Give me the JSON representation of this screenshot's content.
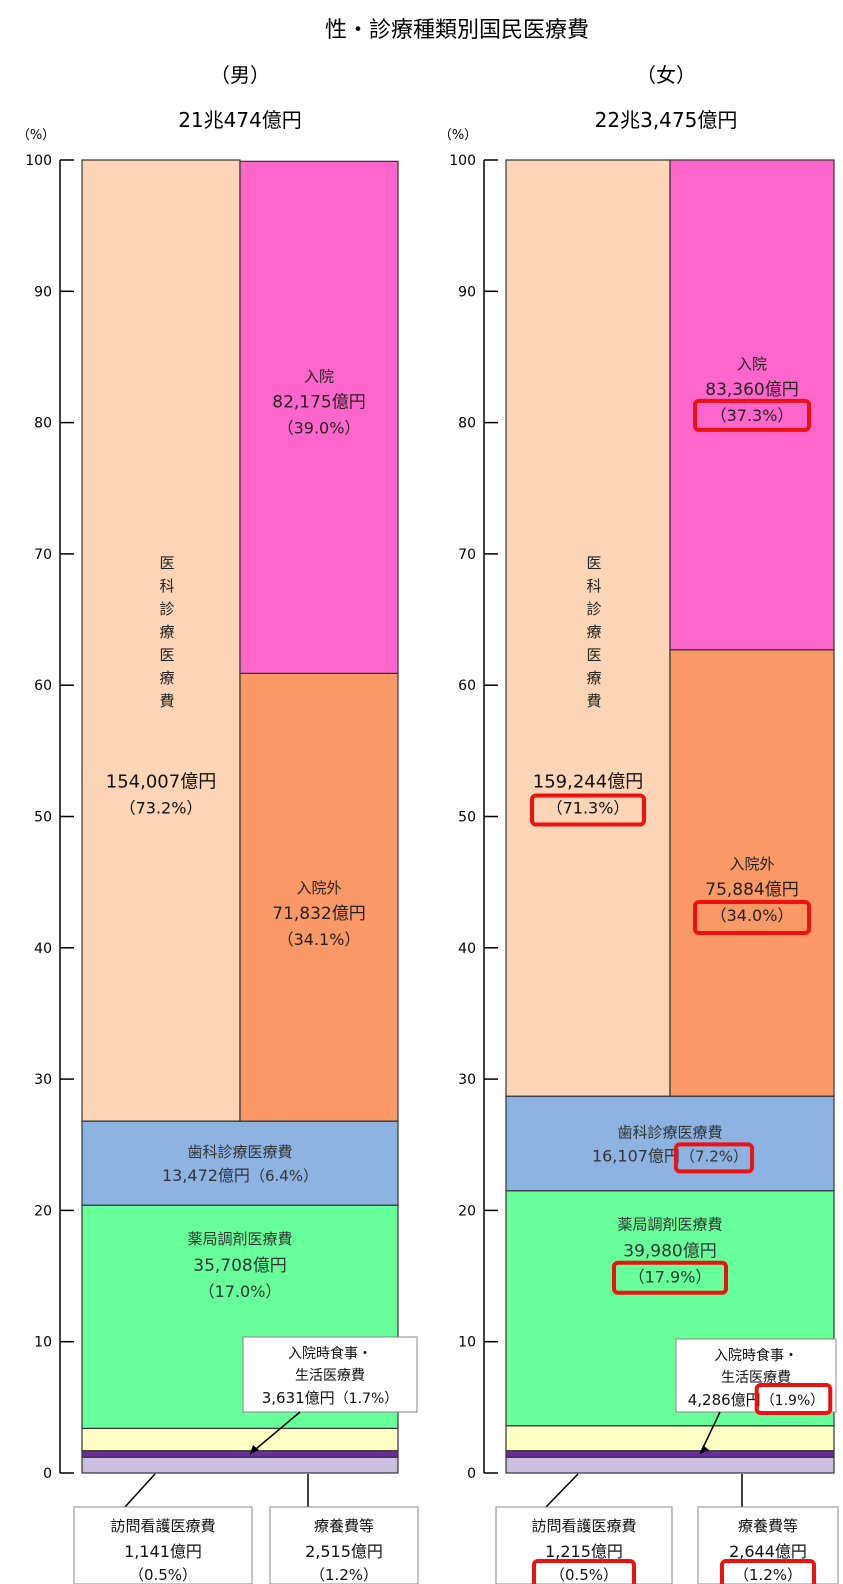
{
  "chart_data": {
    "type": "bar",
    "title": "性・診療種類別国民医療費",
    "ylim": [
      0,
      100
    ],
    "yticks": [
      "0",
      "10",
      "20",
      "30",
      "40",
      "50",
      "60",
      "70",
      "80",
      "90",
      "100"
    ],
    "yunit": "（%）",
    "highlight_color": "#ee1111",
    "panels": [
      {
        "sex": "（男）",
        "total": "21兆474億円",
        "segments": [
          {
            "key": "ryoyo",
            "share": 1.2,
            "color": "#cbbfdf"
          },
          {
            "key": "homon",
            "share": 0.5,
            "color": "#6a2d9b"
          },
          {
            "key": "shokuji",
            "share": 1.7,
            "color": "#ffffc4"
          },
          {
            "key": "yakkyoku",
            "share": 17.0,
            "color": "#66ff99"
          },
          {
            "key": "shika",
            "share": 6.4,
            "color": "#8db3e2"
          },
          {
            "key": "ika",
            "share": 73.2,
            "color": "#fbd5b5",
            "split": [
              {
                "key": "gairai",
                "share": 34.1,
                "color": "#fb9966"
              },
              {
                "key": "nyuin",
                "share": 39.0,
                "color": "#ff66cc"
              }
            ]
          }
        ],
        "labels": {
          "nyuin": [
            "入院",
            "82,175億円",
            "（39.0%）"
          ],
          "gairai": [
            "入院外",
            "71,832億円",
            "（34.1%）"
          ],
          "ika": [
            "154,007億円",
            "（73.2%）"
          ],
          "ika_vertical": "医科診療医療費",
          "shika_name": "歯科診療医療費",
          "shika_value": "13,472億円",
          "shika_pct": "（6.4%）",
          "yakkyoku": [
            "薬局調剤医療費",
            "35,708億円",
            "（17.0%）"
          ],
          "shokuji_name1": "入院時食事・",
          "shokuji_name2": "生活医療費",
          "shokuji_value": "3,631億円",
          "shokuji_pct": "（1.7%）",
          "homon": [
            "訪問看護医療費",
            "1,141億円",
            "（0.5%）"
          ],
          "ryoyo": [
            "療養費等",
            "2,515億円",
            "（1.2%）"
          ]
        },
        "highlighted": []
      },
      {
        "sex": "（女）",
        "total": "22兆3,475億円",
        "segments": [
          {
            "key": "ryoyo",
            "share": 1.2,
            "color": "#cbbfdf"
          },
          {
            "key": "homon",
            "share": 0.5,
            "color": "#6a2d9b"
          },
          {
            "key": "shokuji",
            "share": 1.9,
            "color": "#ffffc4"
          },
          {
            "key": "yakkyoku",
            "share": 17.9,
            "color": "#66ff99"
          },
          {
            "key": "shika",
            "share": 7.2,
            "color": "#8db3e2"
          },
          {
            "key": "ika",
            "share": 71.3,
            "color": "#fbd5b5",
            "split": [
              {
                "key": "gairai",
                "share": 34.0,
                "color": "#fb9966"
              },
              {
                "key": "nyuin",
                "share": 37.3,
                "color": "#ff66cc"
              }
            ]
          }
        ],
        "labels": {
          "nyuin": [
            "入院",
            "83,360億円",
            "（37.3%）"
          ],
          "gairai": [
            "入院外",
            "75,884億円",
            "（34.0%）"
          ],
          "ika": [
            "159,244億円",
            "（71.3%）"
          ],
          "ika_vertical": "医科診療医療費",
          "shika_name": "歯科診療医療費",
          "shika_value": "16,107億円",
          "shika_pct": "（7.2%）",
          "yakkyoku": [
            "薬局調剤医療費",
            "39,980億円",
            "（17.9%）"
          ],
          "shokuji_name1": "入院時食事・",
          "shokuji_name2": "生活医療費",
          "shokuji_value": "4,286億円",
          "shokuji_pct": "（1.9%）",
          "homon": [
            "訪問看護医療費",
            "1,215億円",
            "（0.5%）"
          ],
          "ryoyo": [
            "療養費等",
            "2,644億円",
            "（1.2%）"
          ]
        },
        "highlighted": [
          "nyuin",
          "gairai",
          "ika",
          "shika",
          "yakkyoku",
          "shokuji",
          "homon",
          "ryoyo"
        ]
      }
    ]
  }
}
